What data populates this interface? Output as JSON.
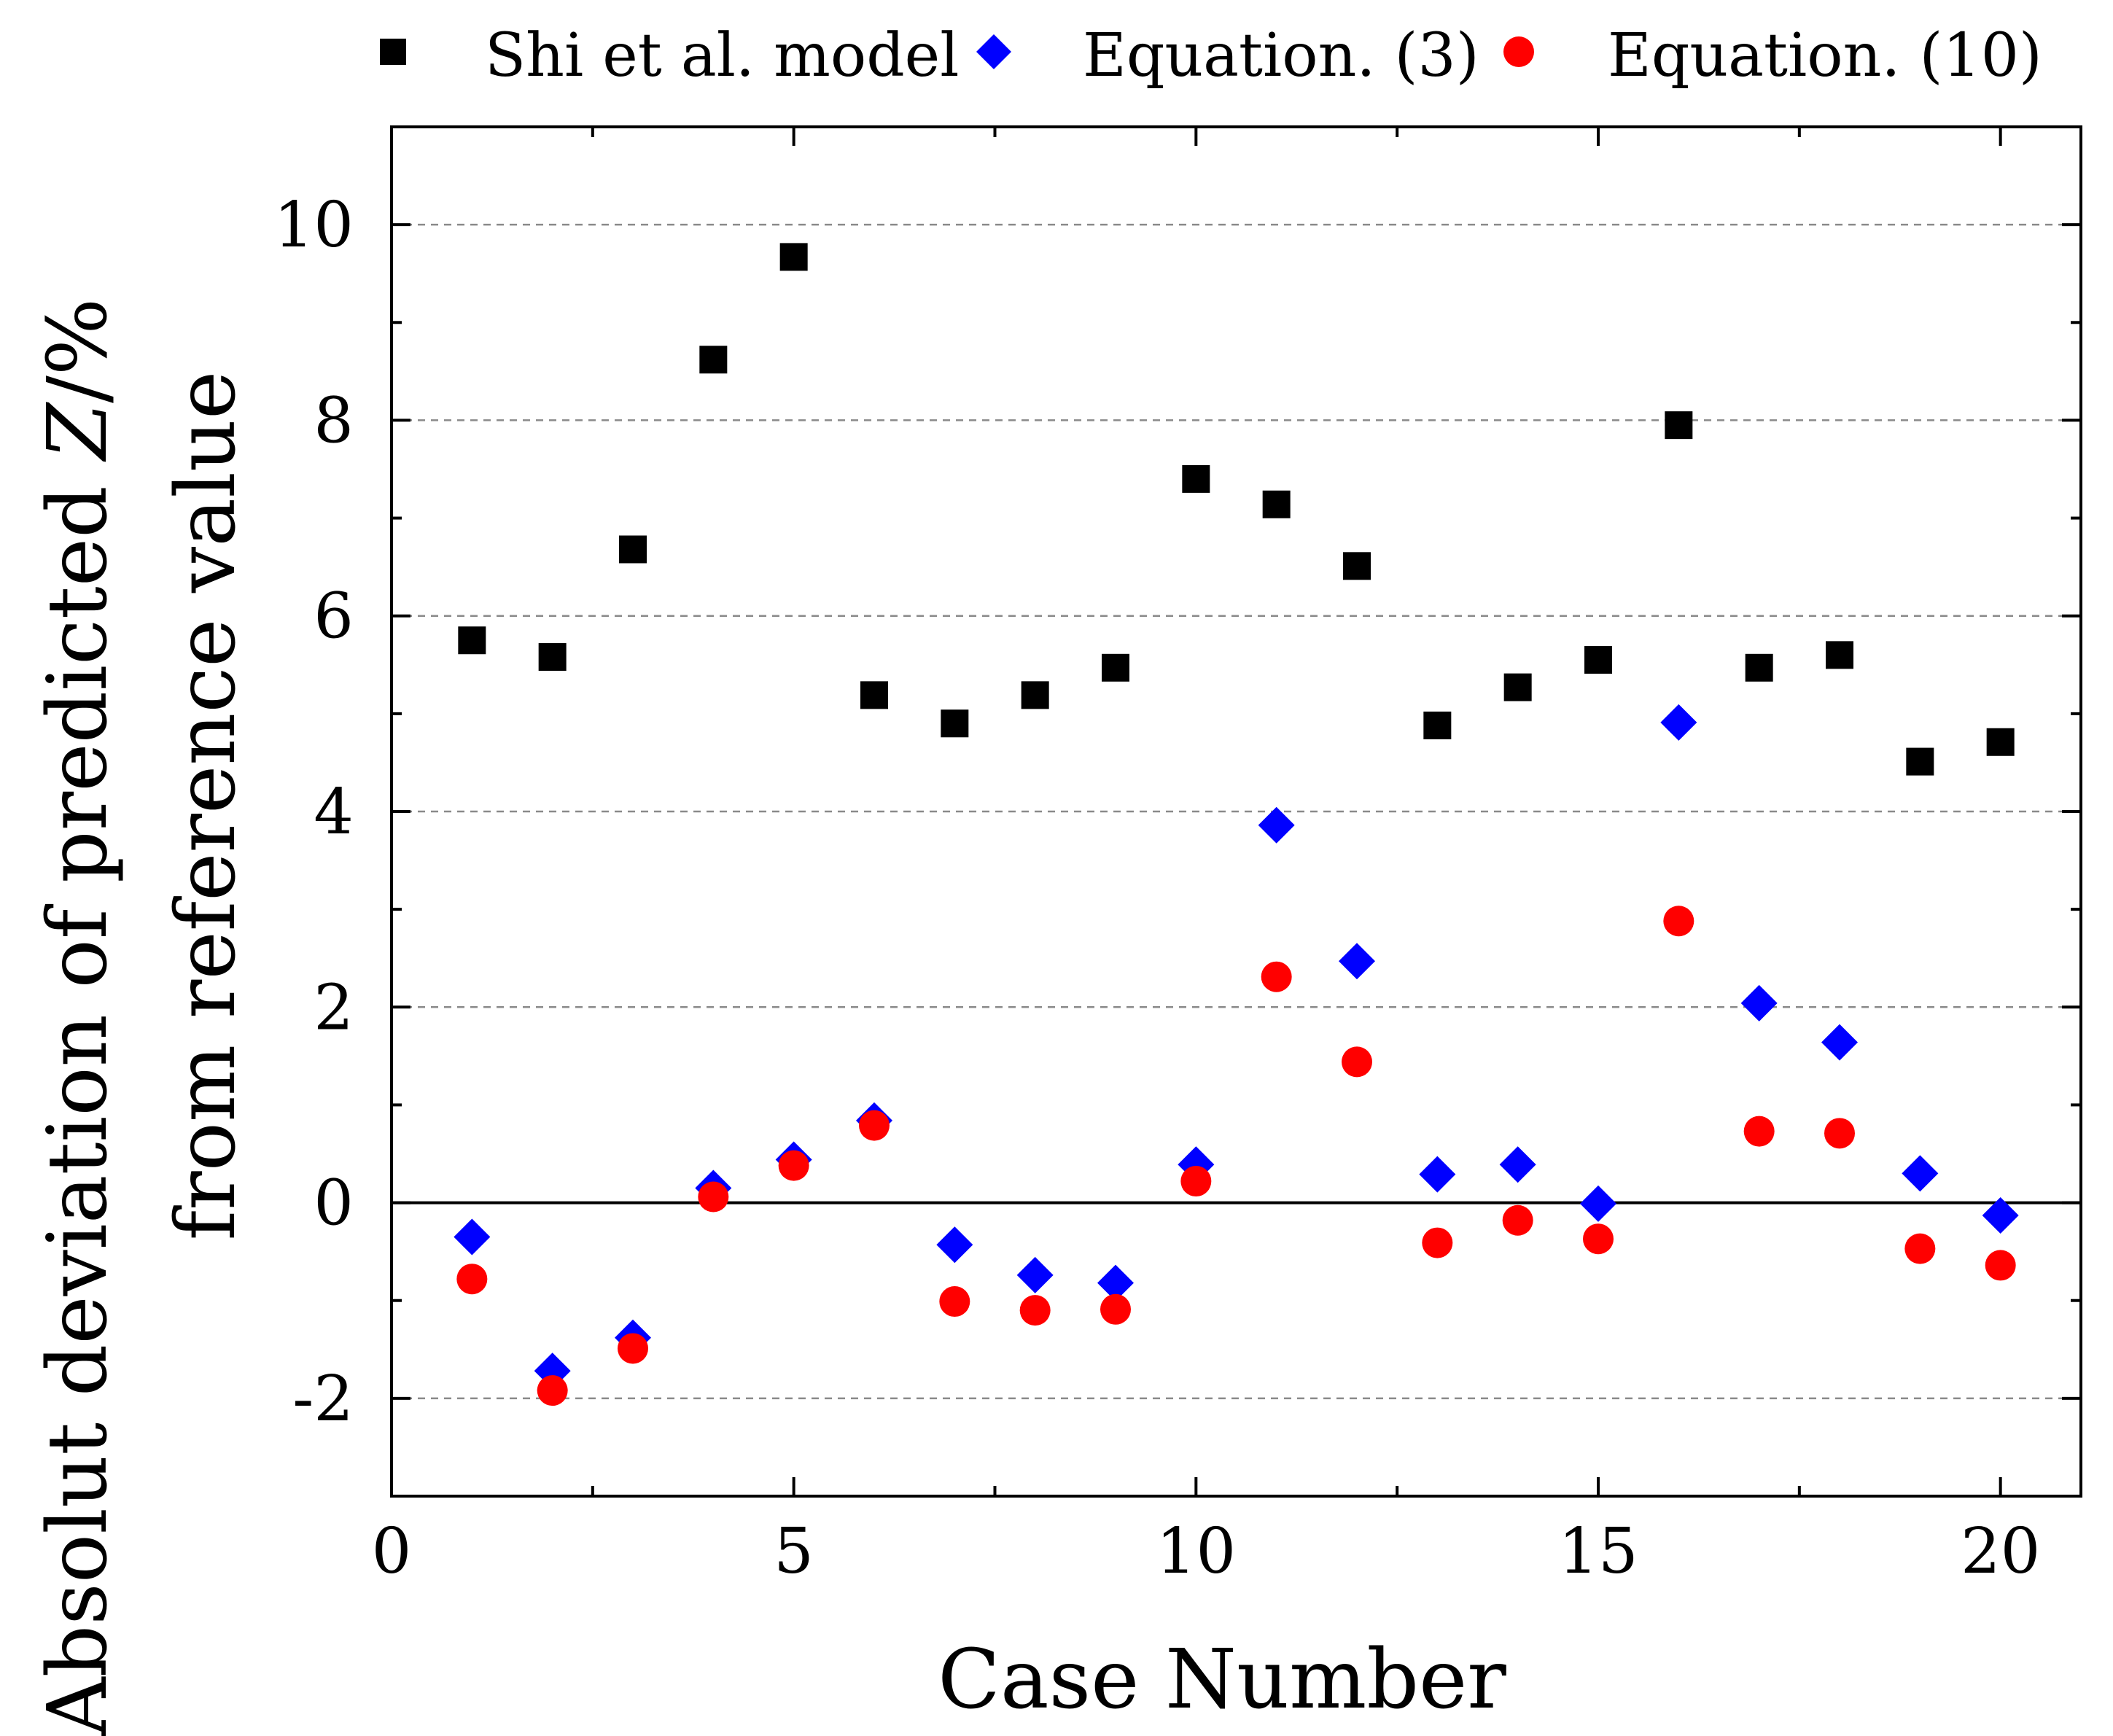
{
  "chart_data": {
    "type": "scatter",
    "title": "",
    "xlabel": "Case Number",
    "ylabel_line1_prefix": "Absolut deviation of predicted ",
    "ylabel_line1_var": "Z",
    "ylabel_line1_suffix": "/%",
    "ylabel_line2": "from reference value",
    "xlim": [
      0,
      21
    ],
    "ylim": [
      -3,
      11
    ],
    "xticks": [
      0,
      5,
      10,
      15,
      20
    ],
    "yticks": [
      -2,
      0,
      2,
      4,
      6,
      8,
      10
    ],
    "xtick_labels": [
      "0",
      "5",
      "10",
      "15",
      "20"
    ],
    "ytick_labels": [
      "-2",
      "0",
      "2",
      "4",
      "6",
      "8",
      "10"
    ],
    "grid": "horizontal dashed at major y ticks",
    "zero_line": true,
    "legend_position": "top, above plot",
    "series": [
      {
        "name": "Shi et al. model",
        "marker": "square",
        "color": "#000000",
        "x": [
          1,
          2,
          3,
          4,
          5,
          6,
          7,
          8,
          9,
          10,
          11,
          12,
          13,
          14,
          15,
          16,
          17,
          18,
          19,
          20
        ],
        "y": [
          5.75,
          5.58,
          6.68,
          8.62,
          9.67,
          5.19,
          4.9,
          5.19,
          5.47,
          7.4,
          7.14,
          6.51,
          4.88,
          5.27,
          5.55,
          7.95,
          5.47,
          5.6,
          4.51,
          4.71
        ]
      },
      {
        "name": "Equation. (3)",
        "marker": "diamond",
        "color": "#0000ff",
        "x": [
          1,
          2,
          3,
          4,
          5,
          6,
          7,
          8,
          9,
          10,
          11,
          12,
          13,
          14,
          15,
          16,
          17,
          18,
          19,
          20
        ],
        "y": [
          -0.35,
          -1.72,
          -1.38,
          0.15,
          0.44,
          0.84,
          -0.43,
          -0.74,
          -0.82,
          0.39,
          3.86,
          2.47,
          0.29,
          0.39,
          -0.01,
          4.91,
          2.04,
          1.64,
          0.3,
          -0.13
        ]
      },
      {
        "name": "Equation. (10)",
        "marker": "circle",
        "color": "#ff0000",
        "x": [
          1,
          2,
          3,
          4,
          5,
          6,
          7,
          8,
          9,
          10,
          11,
          12,
          13,
          14,
          15,
          16,
          17,
          18,
          19,
          20
        ],
        "y": [
          -0.78,
          -1.92,
          -1.49,
          0.06,
          0.38,
          0.79,
          -1.01,
          -1.1,
          -1.09,
          0.22,
          2.31,
          1.44,
          -0.41,
          -0.18,
          -0.37,
          2.88,
          0.73,
          0.71,
          -0.47,
          -0.64
        ]
      }
    ]
  }
}
